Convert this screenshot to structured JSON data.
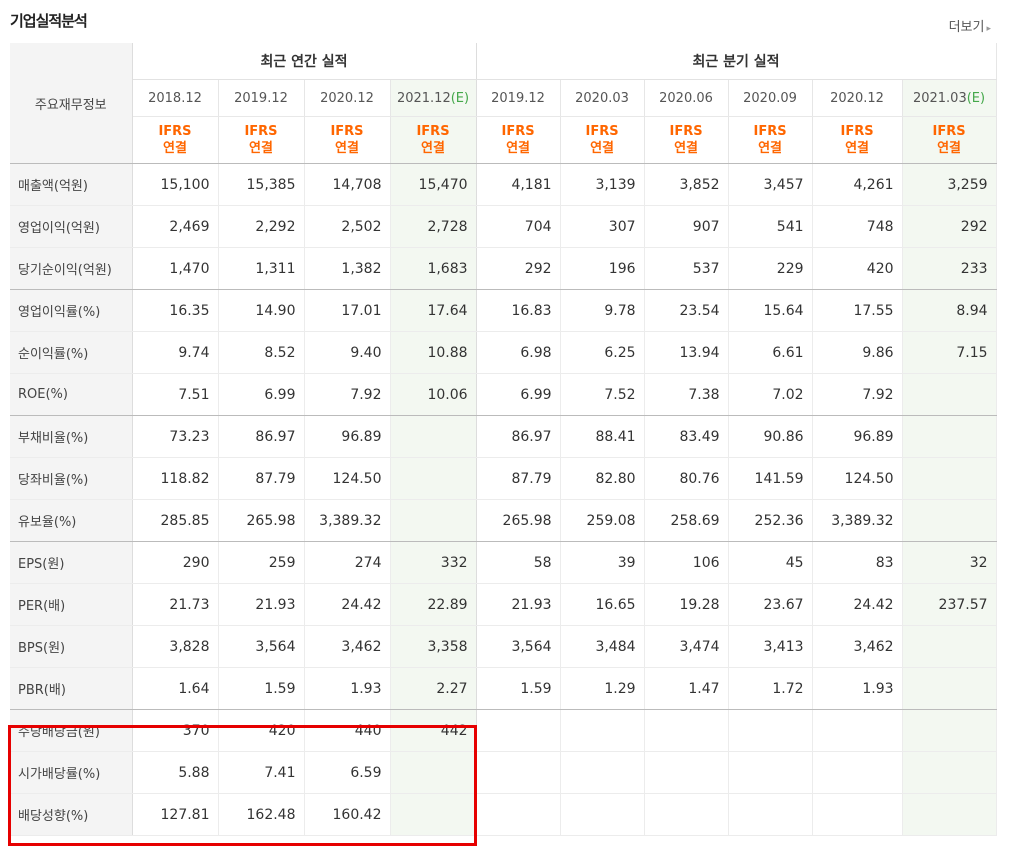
{
  "section_title": "기업실적분석",
  "more_label": "더보기",
  "more_arrow": "▸",
  "row_header_label": "주요재무정보",
  "groups": {
    "annual": "최근 연간 실적",
    "quarter": "최근 분기 실적"
  },
  "periods": [
    {
      "text": "2018.12",
      "mark": ""
    },
    {
      "text": "2019.12",
      "mark": ""
    },
    {
      "text": "2020.12",
      "mark": ""
    },
    {
      "text": "2021.12",
      "mark": "(E)"
    },
    {
      "text": "2019.12",
      "mark": ""
    },
    {
      "text": "2020.03",
      "mark": ""
    },
    {
      "text": "2020.06",
      "mark": ""
    },
    {
      "text": "2020.09",
      "mark": ""
    },
    {
      "text": "2020.12",
      "mark": ""
    },
    {
      "text": "2021.03",
      "mark": "(E)"
    }
  ],
  "estimate_columns": [
    3,
    9
  ],
  "accounting": {
    "line1": "IFRS",
    "line2": "연결"
  },
  "rows": [
    {
      "label": "매출액(억원)",
      "values": [
        "15,100",
        "15,385",
        "14,708",
        "15,470",
        "4,181",
        "3,139",
        "3,852",
        "3,457",
        "4,261",
        "3,259"
      ]
    },
    {
      "label": "영업이익(억원)",
      "values": [
        "2,469",
        "2,292",
        "2,502",
        "2,728",
        "704",
        "307",
        "907",
        "541",
        "748",
        "292"
      ]
    },
    {
      "label": "당기순이익(억원)",
      "values": [
        "1,470",
        "1,311",
        "1,382",
        "1,683",
        "292",
        "196",
        "537",
        "229",
        "420",
        "233"
      ]
    },
    {
      "label": "영업이익률(%)",
      "values": [
        "16.35",
        "14.90",
        "17.01",
        "17.64",
        "16.83",
        "9.78",
        "23.54",
        "15.64",
        "17.55",
        "8.94"
      ]
    },
    {
      "label": "순이익률(%)",
      "values": [
        "9.74",
        "8.52",
        "9.40",
        "10.88",
        "6.98",
        "6.25",
        "13.94",
        "6.61",
        "9.86",
        "7.15"
      ]
    },
    {
      "label": "ROE(%)",
      "values": [
        "7.51",
        "6.99",
        "7.92",
        "10.06",
        "6.99",
        "7.52",
        "7.38",
        "7.02",
        "7.92",
        ""
      ]
    },
    {
      "label": "부채비율(%)",
      "values": [
        "73.23",
        "86.97",
        "96.89",
        "",
        "86.97",
        "88.41",
        "83.49",
        "90.86",
        "96.89",
        ""
      ]
    },
    {
      "label": "당좌비율(%)",
      "values": [
        "118.82",
        "87.79",
        "124.50",
        "",
        "87.79",
        "82.80",
        "80.76",
        "141.59",
        "124.50",
        ""
      ]
    },
    {
      "label": "유보율(%)",
      "values": [
        "285.85",
        "265.98",
        "3,389.32",
        "",
        "265.98",
        "259.08",
        "258.69",
        "252.36",
        "3,389.32",
        ""
      ]
    },
    {
      "label": "EPS(원)",
      "values": [
        "290",
        "259",
        "274",
        "332",
        "58",
        "39",
        "106",
        "45",
        "83",
        "32"
      ]
    },
    {
      "label": "PER(배)",
      "values": [
        "21.73",
        "21.93",
        "24.42",
        "22.89",
        "21.93",
        "16.65",
        "19.28",
        "23.67",
        "24.42",
        "237.57"
      ]
    },
    {
      "label": "BPS(원)",
      "values": [
        "3,828",
        "3,564",
        "3,462",
        "3,358",
        "3,564",
        "3,484",
        "3,474",
        "3,413",
        "3,462",
        ""
      ]
    },
    {
      "label": "PBR(배)",
      "values": [
        "1.64",
        "1.59",
        "1.93",
        "2.27",
        "1.59",
        "1.29",
        "1.47",
        "1.72",
        "1.93",
        ""
      ]
    },
    {
      "label": "주당배당금(원)",
      "values": [
        "370",
        "420",
        "440",
        "442",
        "",
        "",
        "",
        "",
        "",
        ""
      ]
    },
    {
      "label": "시가배당률(%)",
      "values": [
        "5.88",
        "7.41",
        "6.59",
        "",
        "",
        "",
        "",
        "",
        "",
        ""
      ]
    },
    {
      "label": "배당성향(%)",
      "values": [
        "127.81",
        "162.48",
        "160.42",
        "",
        "",
        "",
        "",
        "",
        "",
        ""
      ]
    }
  ],
  "group_end_rows": [
    2,
    5,
    8,
    12
  ],
  "colors": {
    "ifrs": "#ff6600",
    "estimate_bg": "#f3f8f1",
    "highlight": "#e60000",
    "estimate_mark": "#44a84a"
  }
}
